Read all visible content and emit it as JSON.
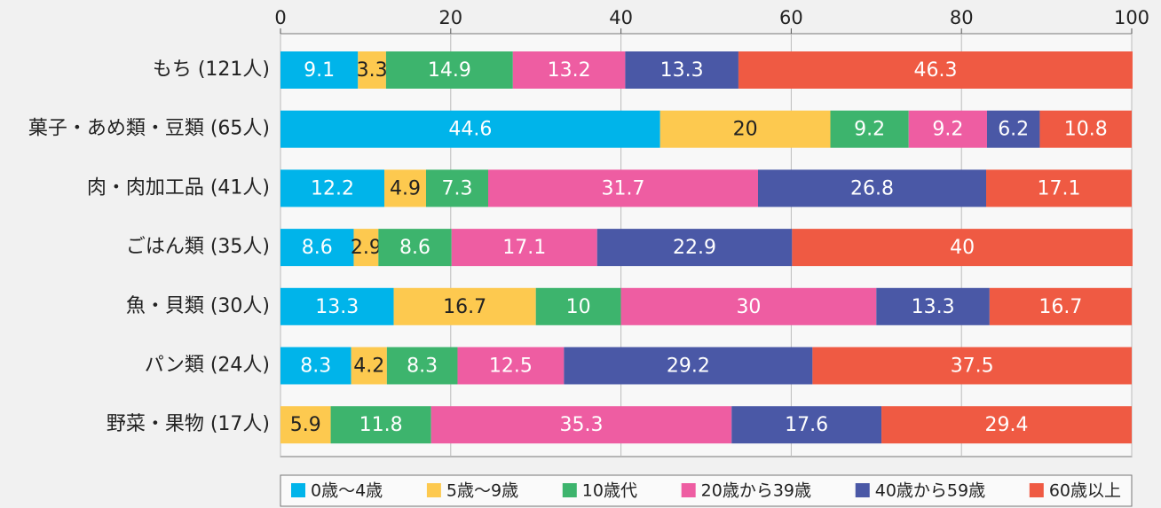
{
  "chart_data": {
    "type": "stacked_barh",
    "categories": [
      "もち (121人)",
      "菓子・あめ類・豆類 (65人)",
      "肉・肉加工品 (41人)",
      "ごはん類 (35人)",
      "魚・貝類 (30人)",
      "パン類 (24人)",
      "野菜・果物 (17人)"
    ],
    "series": [
      {
        "name": "0歳～4歳",
        "color": "#00b4ea",
        "values": [
          9.1,
          44.6,
          12.2,
          8.6,
          13.3,
          8.3,
          null
        ]
      },
      {
        "name": "5歳～9歳",
        "color": "#fdc94f",
        "values": [
          3.3,
          20,
          4.9,
          2.9,
          16.7,
          4.2,
          5.9
        ]
      },
      {
        "name": "10歳代",
        "color": "#3db46d",
        "values": [
          14.9,
          9.2,
          7.3,
          8.6,
          10,
          8.3,
          11.8
        ]
      },
      {
        "name": "20歳から39歳",
        "color": "#ee5da2",
        "values": [
          13.2,
          9.2,
          31.7,
          17.1,
          30,
          12.5,
          35.3
        ]
      },
      {
        "name": "40歳から59歳",
        "color": "#4a58a6",
        "values": [
          13.3,
          6.2,
          26.8,
          22.9,
          13.3,
          29.2,
          17.6
        ]
      },
      {
        "name": "60歳以上",
        "color": "#ef5a43",
        "values": [
          46.3,
          10.8,
          17.1,
          40,
          16.7,
          37.5,
          29.4
        ]
      }
    ],
    "xlim": [
      0,
      100
    ],
    "xticks": [
      0,
      20,
      40,
      60,
      80,
      100
    ],
    "grid": true,
    "legend": "bottom"
  }
}
